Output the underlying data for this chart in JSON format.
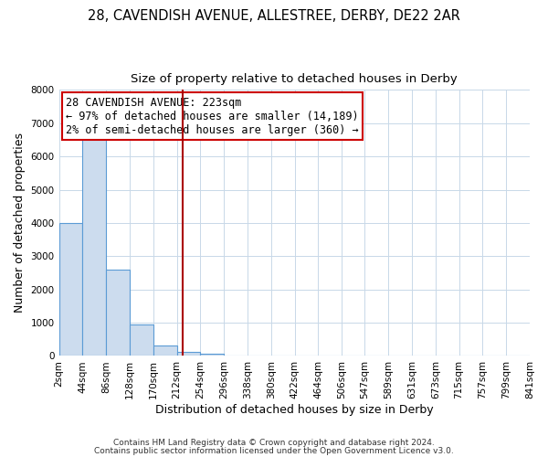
{
  "title_line1": "28, CAVENDISH AVENUE, ALLESTREE, DERBY, DE22 2AR",
  "title_line2": "Size of property relative to detached houses in Derby",
  "xlabel": "Distribution of detached houses by size in Derby",
  "ylabel": "Number of detached properties",
  "bin_edges": [
    2,
    44,
    86,
    128,
    170,
    212,
    254,
    296,
    338,
    380,
    422,
    464,
    506,
    547,
    589,
    631,
    673,
    715,
    757,
    799,
    841
  ],
  "bin_counts": [
    4000,
    6600,
    2600,
    950,
    320,
    130,
    60,
    0,
    0,
    0,
    0,
    0,
    0,
    0,
    0,
    0,
    0,
    0,
    0,
    0
  ],
  "bar_color": "#ccdcee",
  "bar_edge_color": "#5b9bd5",
  "property_size": 223,
  "vline_color": "#aa0000",
  "annotation_box_color": "#cc0000",
  "annotation_text": "28 CAVENDISH AVENUE: 223sqm\n← 97% of detached houses are smaller (14,189)\n2% of semi-detached houses are larger (360) →",
  "annotation_fontsize": 8.5,
  "ylim": [
    0,
    8000
  ],
  "yticks": [
    0,
    1000,
    2000,
    3000,
    4000,
    5000,
    6000,
    7000,
    8000
  ],
  "tick_labels": [
    "2sqm",
    "44sqm",
    "86sqm",
    "128sqm",
    "170sqm",
    "212sqm",
    "254sqm",
    "296sqm",
    "338sqm",
    "380sqm",
    "422sqm",
    "464sqm",
    "506sqm",
    "547sqm",
    "589sqm",
    "631sqm",
    "673sqm",
    "715sqm",
    "757sqm",
    "799sqm",
    "841sqm"
  ],
  "footer_line1": "Contains HM Land Registry data © Crown copyright and database right 2024.",
  "footer_line2": "Contains public sector information licensed under the Open Government Licence v3.0.",
  "bg_color": "#ffffff",
  "plot_bg_color": "#ffffff",
  "title_fontsize": 10.5,
  "subtitle_fontsize": 9.5,
  "axis_label_fontsize": 9,
  "tick_fontsize": 7.5,
  "footer_fontsize": 6.5
}
